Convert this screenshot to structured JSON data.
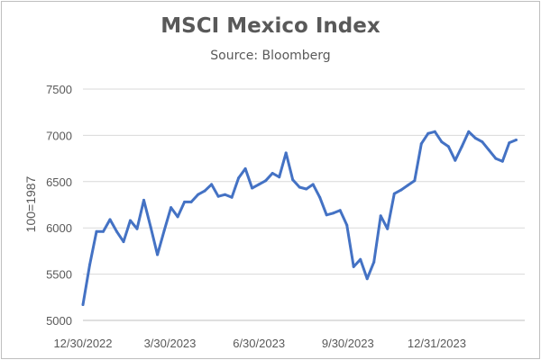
{
  "chart_data": {
    "type": "line",
    "title": "MSCI Mexico Index",
    "subtitle": "Source: Bloomberg",
    "xlabel": "",
    "ylabel": "100=1987",
    "ylim": [
      5000,
      7500
    ],
    "yticks": [
      5000,
      5500,
      6000,
      6500,
      7000,
      7500
    ],
    "grid": true,
    "legend": "none",
    "x_tick_labels": [
      "12/30/2022",
      "3/30/2023",
      "6/30/2023",
      "9/30/2023",
      "12/31/2023"
    ],
    "x_tick_dates": [
      "2022-12-30",
      "2023-03-30",
      "2023-06-30",
      "2023-09-30",
      "2023-12-31"
    ],
    "x_range": [
      "2022-12-30",
      "2024-03-31"
    ],
    "series": [
      {
        "color": "#4472c4",
        "x": [
          "2022-12-30",
          "2023-01-06",
          "2023-01-13",
          "2023-01-20",
          "2023-01-27",
          "2023-02-03",
          "2023-02-10",
          "2023-02-17",
          "2023-02-24",
          "2023-03-03",
          "2023-03-10",
          "2023-03-17",
          "2023-03-24",
          "2023-03-31",
          "2023-04-07",
          "2023-04-14",
          "2023-04-21",
          "2023-04-28",
          "2023-05-05",
          "2023-05-12",
          "2023-05-19",
          "2023-05-26",
          "2023-06-02",
          "2023-06-09",
          "2023-06-16",
          "2023-06-23",
          "2023-06-30",
          "2023-07-07",
          "2023-07-14",
          "2023-07-21",
          "2023-07-28",
          "2023-08-04",
          "2023-08-11",
          "2023-08-18",
          "2023-08-25",
          "2023-09-01",
          "2023-09-08",
          "2023-09-15",
          "2023-09-22",
          "2023-09-29",
          "2023-10-06",
          "2023-10-13",
          "2023-10-20",
          "2023-10-27",
          "2023-11-03",
          "2023-11-10",
          "2023-11-17",
          "2023-11-24",
          "2023-12-01",
          "2023-12-08",
          "2023-12-15",
          "2023-12-22",
          "2023-12-29",
          "2024-01-05",
          "2024-01-12",
          "2024-01-19",
          "2024-01-26",
          "2024-02-02",
          "2024-02-09",
          "2024-02-16",
          "2024-02-23",
          "2024-03-01",
          "2024-03-08",
          "2024-03-15",
          "2024-03-22"
        ],
        "values": [
          5170,
          5600,
          5960,
          5960,
          6090,
          5960,
          5850,
          6080,
          5990,
          6300,
          6010,
          5710,
          5970,
          6220,
          6120,
          6280,
          6280,
          6360,
          6400,
          6470,
          6340,
          6360,
          6330,
          6540,
          6640,
          6430,
          6470,
          6510,
          6590,
          6550,
          6810,
          6520,
          6440,
          6420,
          6470,
          6330,
          6140,
          6160,
          6190,
          6030,
          5580,
          5660,
          5450,
          5630,
          6130,
          5990,
          6370,
          6410,
          6460,
          6510,
          6910,
          7020,
          7040,
          6930,
          6880,
          6730,
          6880,
          7040,
          6970,
          6930,
          6840,
          6750,
          6720,
          6920,
          6950
        ]
      }
    ]
  }
}
